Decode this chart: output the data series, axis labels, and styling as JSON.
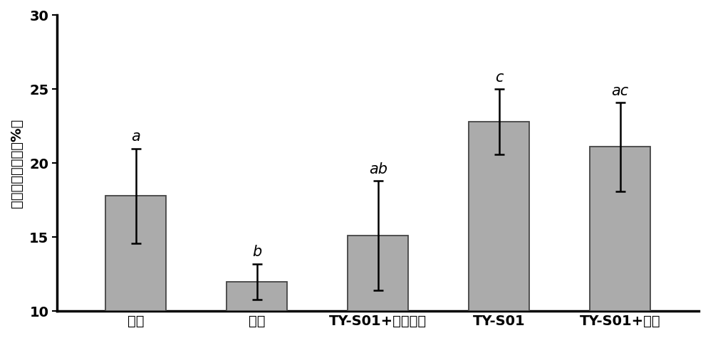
{
  "categories": [
    "空白",
    "模型",
    "TY-S01+高脂饲料",
    "TY-S01",
    "TY-S01+聚葡"
  ],
  "values": [
    17.8,
    12.0,
    15.1,
    22.8,
    21.1
  ],
  "errors": [
    3.2,
    1.2,
    3.7,
    2.2,
    3.0
  ],
  "sig_labels": [
    "a",
    "b",
    "ab",
    "c",
    "ac"
  ],
  "bar_color": "#ABABAB",
  "bar_edge_color": "#444444",
  "ylabel": "巨噬细胞存噬率（%）",
  "ylim": [
    10,
    30
  ],
  "yticks": [
    10,
    15,
    20,
    25,
    30
  ],
  "background_color": "#ffffff",
  "bar_width": 0.5,
  "sig_fontsize": 15,
  "tick_fontsize": 14,
  "ylabel_fontsize": 14
}
